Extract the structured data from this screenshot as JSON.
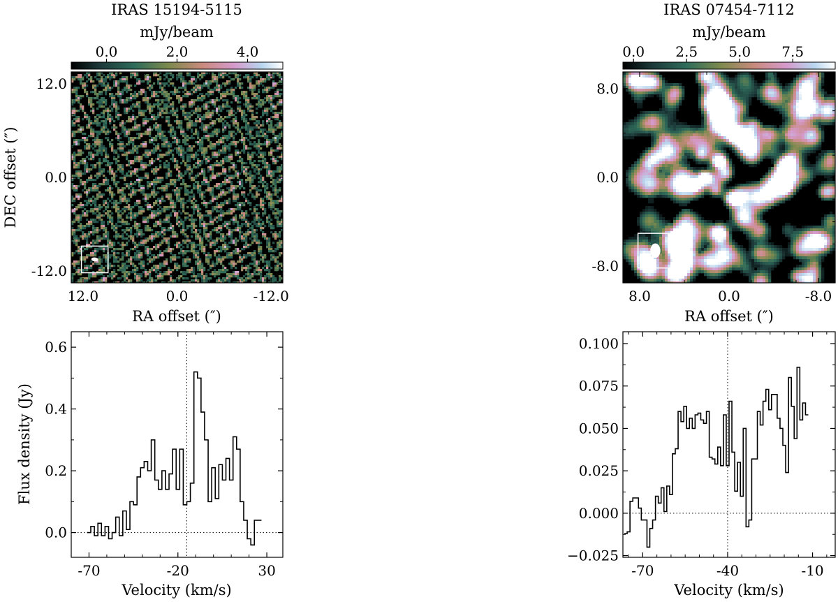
{
  "figure": {
    "left_title": "IRAS 15194-5115",
    "right_title": "IRAS 07454-7112",
    "colorbar_label": "mJy/beam",
    "map_xlabel": "RA offset (″)",
    "map_ylabel": "DEC offset (″)",
    "spec_xlabel": "Velocity (km/s)",
    "spec_ylabel": "Flux density (Jy)",
    "colormap": [
      "#000000",
      "#1d3a3a",
      "#2f6c5a",
      "#7d8a4e",
      "#c98a7d",
      "#d59acb",
      "#b8d6ee",
      "#ffffff"
    ]
  },
  "chart_data": [
    {
      "type": "heatmap",
      "title": "IRAS 15194-5115",
      "xlabel": "RA offset (″)",
      "ylabel": "DEC offset (″)",
      "xlim": [
        13.5,
        -13.5
      ],
      "ylim": [
        -13.5,
        13.5
      ],
      "xticks": [
        12,
        0,
        -12
      ],
      "xticklabels": [
        "12.0",
        "0.0",
        "-12.0"
      ],
      "yticks": [
        12,
        0,
        -12
      ],
      "yticklabels": [
        "12.0",
        "0.0",
        "-12.0"
      ],
      "colorbar": {
        "label": "mJy/beam",
        "range": [
          -1.0,
          5.0
        ],
        "ticks": [
          0.0,
          2.0,
          4.0
        ],
        "ticklabels": [
          "0.0",
          "2.0",
          "4.0"
        ]
      },
      "beam": {
        "ra": 10.5,
        "dec": -10.5,
        "major": 0.8,
        "minor": 0.45,
        "pa": 70
      },
      "texture": "fine diagonal speckle noise"
    },
    {
      "type": "heatmap",
      "title": "IRAS 07454-7112",
      "xlabel": "RA offset (″)",
      "ylabel": "",
      "xlim": [
        9.5,
        -9.5
      ],
      "ylim": [
        -9.5,
        9.5
      ],
      "xticks": [
        8,
        0,
        -8
      ],
      "xticklabels": [
        "8.0",
        "0.0",
        "-8.0"
      ],
      "yticks": [
        8,
        0,
        -8
      ],
      "yticklabels": [
        "8.0",
        "0.0",
        "-8.0"
      ],
      "colorbar": {
        "label": "mJy/beam",
        "range": [
          -0.5,
          9.5
        ],
        "ticks": [
          0.0,
          2.5,
          5.0,
          7.5
        ],
        "ticklabels": [
          "0.0",
          "2.5",
          "5.0",
          "7.5"
        ]
      },
      "beam": {
        "ra": 6.6,
        "dec": -6.6,
        "major": 1.3,
        "minor": 0.9,
        "pa": 0
      },
      "emission_peaks": [
        {
          "ra": 0.9,
          "dec": 1.5,
          "value": 9.5
        },
        {
          "ra": 2.1,
          "dec": 0.0,
          "value": 8.5
        },
        {
          "ra": -0.4,
          "dec": -1.9,
          "value": 9.0
        },
        {
          "ra": 1.2,
          "dec": -1.2,
          "value": 6.0
        },
        {
          "ra": 2.5,
          "dec": 2.0,
          "value": 5.0
        },
        {
          "ra": 0.2,
          "dec": 0.3,
          "value": 5.5
        }
      ],
      "texture": "smoothed blob noise"
    },
    {
      "type": "line",
      "drawstyle": "steps",
      "xlabel": "Velocity (km/s)",
      "ylabel": "Flux density (Jy)",
      "xlim": [
        -80,
        39
      ],
      "ylim": [
        -0.08,
        0.65
      ],
      "xticks": [
        -70,
        -20,
        30
      ],
      "xticklabels": [
        "-70",
        "-20",
        "30"
      ],
      "yticks": [
        0.0,
        0.2,
        0.4,
        0.6
      ],
      "yticklabels": [
        "0.0",
        "0.2",
        "0.4",
        "0.6"
      ],
      "vline": -15,
      "hline": 0.0,
      "series": [
        {
          "x_start": -70,
          "x_step": 2,
          "values": [
            0.0,
            0.02,
            -0.01,
            0.03,
            -0.01,
            0.02,
            -0.02,
            0.0,
            0.05,
            -0.01,
            0.07,
            0.01,
            0.1,
            0.09,
            0.18,
            0.21,
            0.23,
            0.2,
            0.3,
            0.17,
            0.14,
            0.2,
            0.14,
            0.19,
            0.27,
            0.14,
            0.27,
            0.09,
            0.1,
            0.16,
            0.52,
            0.5,
            0.39,
            0.3,
            0.1,
            0.21,
            0.11,
            0.22,
            0.17,
            0.24,
            0.17,
            0.31,
            0.27,
            0.1,
            0.04,
            -0.02,
            -0.04,
            0.04,
            0.04
          ]
        }
      ]
    },
    {
      "type": "line",
      "drawstyle": "steps",
      "xlabel": "Velocity (km/s)",
      "ylabel": "",
      "xlim": [
        -77,
        -2
      ],
      "ylim": [
        -0.026,
        0.107
      ],
      "xticks": [
        -70,
        -40,
        -10
      ],
      "xticklabels": [
        "-70",
        "-40",
        "-10"
      ],
      "yticks": [
        -0.025,
        0.0,
        0.025,
        0.05,
        0.075,
        0.1
      ],
      "yticklabels": [
        "−0.025",
        "0.000",
        "0.025",
        "0.050",
        "0.075",
        "0.100"
      ],
      "vline": -40,
      "hline": 0.0,
      "series": [
        {
          "x_start": -76,
          "x_step": 1,
          "values": [
            -0.012,
            -0.011,
            0.007,
            0.009,
            0.009,
            0.003,
            -0.004,
            -0.004,
            -0.02,
            -0.009,
            -0.004,
            0.01,
            0.006,
            0.015,
            0.001,
            0.016,
            0.011,
            0.035,
            0.038,
            0.06,
            0.054,
            0.063,
            0.05,
            0.056,
            0.05,
            0.058,
            0.059,
            0.055,
            0.053,
            0.06,
            0.033,
            0.032,
            0.029,
            0.039,
            0.028,
            0.058,
            0.028,
            0.066,
            0.036,
            0.013,
            0.03,
            0.01,
            0.05,
            -0.008,
            -0.004,
            0.032,
            0.032,
            0.06,
            0.052,
            0.066,
            0.073,
            0.061,
            0.07,
            0.07,
            0.056,
            0.05,
            0.04,
            0.024,
            0.08,
            0.063,
            0.044,
            0.086,
            0.055,
            0.065,
            0.058
          ]
        }
      ]
    }
  ]
}
